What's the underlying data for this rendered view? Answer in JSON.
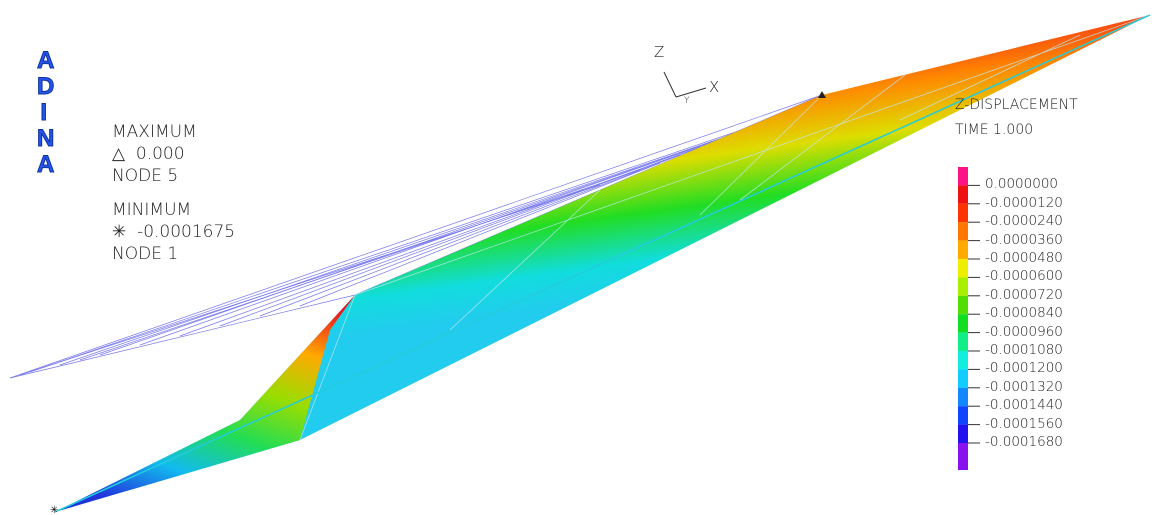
{
  "logo": "ADINA",
  "triad": {
    "z": "Z",
    "x": "X",
    "y": "Y"
  },
  "maximum": {
    "title": "MAXIMUM",
    "value": "0.000",
    "node": "NODE 5"
  },
  "minimum": {
    "title": "MINIMUM",
    "value": "-0.0001675",
    "node": "NODE 1"
  },
  "legend": {
    "title": "Z-DISPLACEMENT",
    "time": "TIME 1.000",
    "labels": [
      "0.0000000",
      "-0.0000120",
      "-0.0000240",
      "-0.0000360",
      "-0.0000480",
      "-0.0000600",
      "-0.0000720",
      "-0.0000840",
      "-0.0000960",
      "-0.0001080",
      "-0.0001200",
      "-0.0001320",
      "-0.0001440",
      "-0.0001560",
      "-0.0001680"
    ]
  }
}
